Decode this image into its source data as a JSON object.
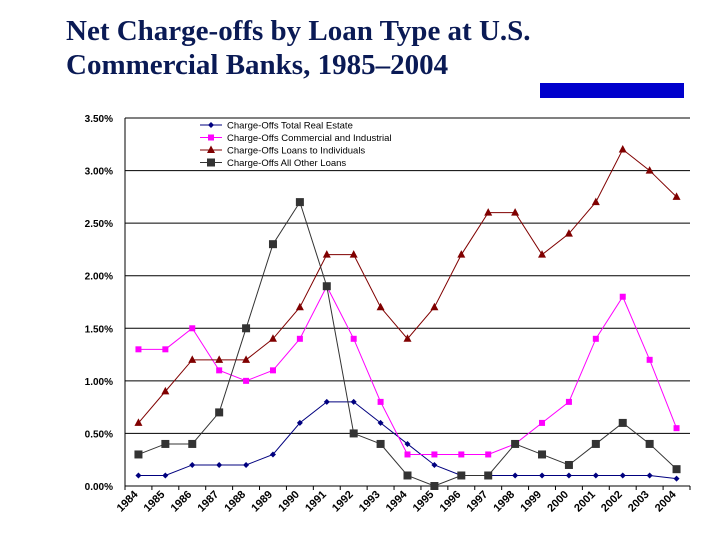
{
  "slide": {
    "title": "Net Charge-offs by Loan Type at U.S. Commercial Banks, 1985–2004",
    "accent_color": "#0000cc"
  },
  "chart_data": {
    "type": "line",
    "title": "",
    "xlabel": "",
    "ylabel": "",
    "x": [
      "1984",
      "1985",
      "1986",
      "1987",
      "1988",
      "1989",
      "1990",
      "1991",
      "1992",
      "1993",
      "1994",
      "1995",
      "1996",
      "1997",
      "1998",
      "1999",
      "2000",
      "2001",
      "2002",
      "2003",
      "2004"
    ],
    "ylim": [
      0,
      3.5
    ],
    "yticks": [
      "0.00%",
      "0.50%",
      "1.00%",
      "1.50%",
      "2.00%",
      "2.50%",
      "3.00%",
      "3.50%"
    ],
    "grid": true,
    "legend_position": "top",
    "series": [
      {
        "name": "Charge-Offs Total Real Estate",
        "color": "#00007f",
        "marker": "diamond",
        "values": [
          0.1,
          0.1,
          0.2,
          0.2,
          0.2,
          0.3,
          0.6,
          0.8,
          0.8,
          0.6,
          0.4,
          0.2,
          0.1,
          0.1,
          0.1,
          0.1,
          0.1,
          0.1,
          0.1,
          0.1,
          0.07
        ]
      },
      {
        "name": "Charge-Offs Commercial and Industrial",
        "color": "#ff00ff",
        "marker": "square",
        "values": [
          1.3,
          1.3,
          1.5,
          1.1,
          1.0,
          1.1,
          1.4,
          1.9,
          1.4,
          0.8,
          0.3,
          0.3,
          0.3,
          0.3,
          0.4,
          0.6,
          0.8,
          1.4,
          1.8,
          1.2,
          0.55
        ]
      },
      {
        "name": "Charge-Offs Loans to Individuals",
        "color": "#800000",
        "marker": "triangle",
        "values": [
          0.6,
          0.9,
          1.2,
          1.2,
          1.2,
          1.4,
          1.7,
          2.2,
          2.2,
          1.7,
          1.4,
          1.7,
          2.2,
          2.6,
          2.6,
          2.2,
          2.4,
          2.7,
          3.2,
          3.0,
          2.75
        ]
      },
      {
        "name": "Charge-Offs All Other Loans",
        "color": "#333333",
        "marker": "bigsquare",
        "values": [
          0.3,
          0.4,
          0.4,
          0.7,
          1.5,
          2.3,
          2.7,
          1.9,
          0.5,
          0.4,
          0.1,
          0.0,
          0.1,
          0.1,
          0.4,
          0.3,
          0.2,
          0.4,
          0.6,
          0.4,
          0.16
        ]
      }
    ]
  }
}
